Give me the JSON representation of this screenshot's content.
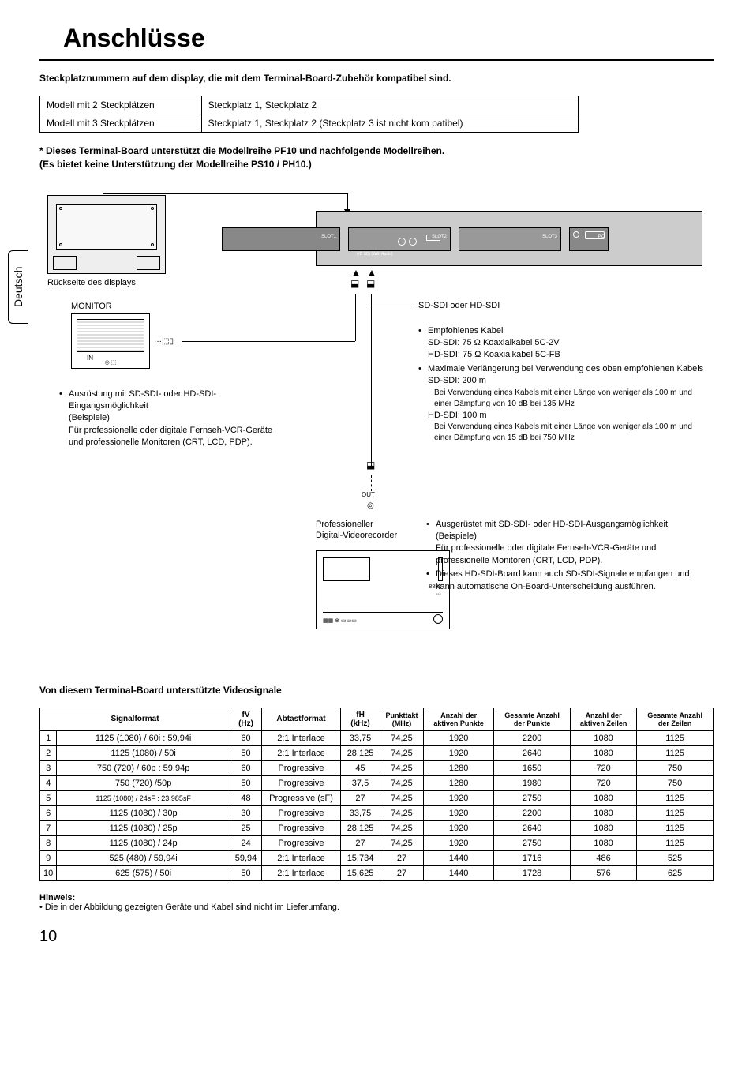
{
  "page": {
    "title": "Anschlüsse",
    "subtitle": "Steckplatznummern auf dem display, die mit dem Terminal-Board-Zubehör kompatibel sind.",
    "note_star": "* Dieses Terminal-Board unterstützt die Modellreihe PF10 und nachfolgende Modellreihen.\n   (Es bietet keine Unterstützung der Modellreihe PS10 / PH10.)",
    "side_tab": "Deutsch",
    "page_number": "10"
  },
  "slot_table": {
    "rows": [
      [
        "Modell mit 2 Steckplätzen",
        "Steckplatz 1, Steckplatz 2"
      ],
      [
        "Modell mit 3 Steckplätzen",
        "Steckplatz 1, Steckplatz 2 (Steckplatz 3 ist nicht kom patibel)"
      ]
    ]
  },
  "diagram": {
    "display_back_label": "Rückseite des displays",
    "monitor_label": "MONITOR",
    "in_label": "IN",
    "out_label": "OUT",
    "slot1": "SLOT1",
    "slot2": "SLOT2",
    "slot3": "SLOT3",
    "pc": "PC",
    "hd_sdi_audio": "HD  SDI (With Audio)",
    "sdi_title": "SD-SDI oder HD-SDI",
    "cable_section": {
      "rec_cable": "Empfohlenes Kabel",
      "sd_cable": "SD-SDI: 75 Ω Koaxialkabel 5C-2V",
      "hd_cable": "HD-SDI: 75 Ω Koaxialkabel 5C-FB",
      "max_ext": "Maximale Verlängerung bei Verwendung des oben empfohlenen Kabels",
      "sd_len": "SD-SDI: 200 m",
      "sd_note": "Bei Verwendung eines Kabels mit einer Länge von weniger als 100 m und einer Dämpfung von 10 dB bei 135 MHz",
      "hd_len": "HD-SDI: 100 m",
      "hd_note": "Bei Verwendung eines Kabels mit einer Länge von weniger als 100 m und einer Dämpfung von 15 dB bei 750 MHz"
    },
    "left_equip": {
      "l1": "Ausrüstung mit SD-SDI- oder HD-SDI-Eingangsmöglichkeit",
      "l2": "(Beispiele)",
      "l3": "Für professionelle oder digitale Fernseh-VCR-Geräte und professionelle Monitoren (CRT, LCD, PDP)."
    },
    "vcr_label": "Professioneller\nDigital-Videorecorder",
    "right_equip": {
      "l1": "Ausgerüstet mit SD-SDI- oder HD-SDI-Ausgangsmöglichkeit",
      "l2": "(Beispiele)",
      "l3": "Für professionelle oder digitale Fernseh-VCR-Geräte und professionelle Monitoren (CRT, LCD, PDP).",
      "l4": "Dieses HD-SDI-Board kann auch SD-SDI-Signale empfangen und kann automatische On-Board-Unterscheidung ausführen."
    }
  },
  "signals": {
    "heading": "Von diesem Terminal-Board unterstützte Videosignale",
    "headers": [
      "",
      "Signalformat",
      "fV\n(Hz)",
      "Abtastformat",
      "fH\n(kHz)",
      "Punkttakt\n(MHz)",
      "Anzahl der\naktiven Punkte",
      "Gesamte Anzahl\nder Punkte",
      "Anzahl der\naktiven Zeilen",
      "Gesamte Anzahl\nder Zeilen"
    ],
    "rows": [
      [
        "1",
        "1125 (1080) / 60i : 59,94i",
        "60",
        "2:1 Interlace",
        "33,75",
        "74,25",
        "1920",
        "2200",
        "1080",
        "1125"
      ],
      [
        "2",
        "1125 (1080) / 50i",
        "50",
        "2:1 Interlace",
        "28,125",
        "74,25",
        "1920",
        "2640",
        "1080",
        "1125"
      ],
      [
        "3",
        "750 (720) / 60p : 59,94p",
        "60",
        "Progressive",
        "45",
        "74,25",
        "1280",
        "1650",
        "720",
        "750"
      ],
      [
        "4",
        "750 (720) /50p",
        "50",
        "Progressive",
        "37,5",
        "74,25",
        "1280",
        "1980",
        "720",
        "750"
      ],
      [
        "5",
        "1125 (1080) / 24sF : 23,985sF",
        "48",
        "Progressive (sF)",
        "27",
        "74,25",
        "1920",
        "2750",
        "1080",
        "1125"
      ],
      [
        "6",
        "1125 (1080) / 30p",
        "30",
        "Progressive",
        "33,75",
        "74,25",
        "1920",
        "2200",
        "1080",
        "1125"
      ],
      [
        "7",
        "1125 (1080) / 25p",
        "25",
        "Progressive",
        "28,125",
        "74,25",
        "1920",
        "2640",
        "1080",
        "1125"
      ],
      [
        "8",
        "1125 (1080) / 24p",
        "24",
        "Progressive",
        "27",
        "74,25",
        "1920",
        "2750",
        "1080",
        "1125"
      ],
      [
        "9",
        "525 (480) / 59,94i",
        "59,94",
        "2:1 Interlace",
        "15,734",
        "27",
        "1440",
        "1716",
        "486",
        "525"
      ],
      [
        "10",
        "625 (575) / 50i",
        "50",
        "2:1 Interlace",
        "15,625",
        "27",
        "1440",
        "1728",
        "576",
        "625"
      ]
    ]
  },
  "footer": {
    "heading": "Hinweis:",
    "text": "Die in der Abbildung gezeigten Geräte und Kabel sind nicht im Lieferumfang."
  }
}
